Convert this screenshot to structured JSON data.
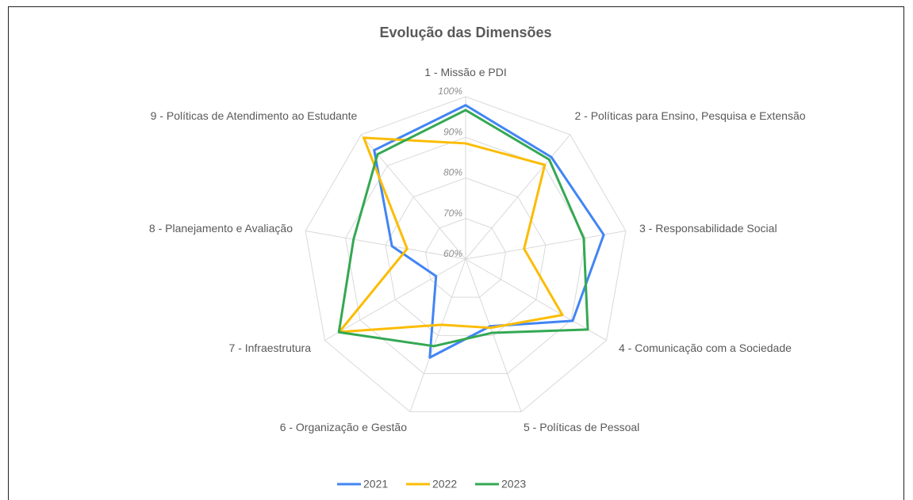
{
  "chart_data": {
    "type": "radar",
    "title": "Evolução das Dimensões",
    "categories": [
      "1 - Missão e PDI",
      "2 - Políticas para Ensino, Pesquisa e Extensão",
      "3 - Responsabilidade Social",
      "4 - Comunicação com a Sociedade",
      "5 - Políticas de Pessoal",
      "6 - Organização e Gestão",
      "7 - Infraestrutura",
      "8 - Planejamento e Avaliação",
      "9 - Políticas de Atendimento ao Estudante"
    ],
    "series": [
      {
        "name": "2021",
        "color": "#4285f4",
        "values": [
          97.9,
          92.8,
          94.5,
          90.4,
          77.6,
          85.8,
          68.4,
          78.4,
          95
        ]
      },
      {
        "name": "2022",
        "color": "#fbbc04",
        "values": [
          88.5,
          90.3,
          74.6,
          87.5,
          78,
          77.2,
          95.9,
          74.6,
          99
        ]
      },
      {
        "name": "2023",
        "color": "#34a853",
        "values": [
          96.7,
          92,
          89.5,
          94.7,
          79.3,
          82.8,
          96,
          88,
          93.7
        ]
      }
    ],
    "ylim": [
      60,
      100
    ],
    "yticks": [
      {
        "value": 60,
        "label": "60%"
      },
      {
        "value": 70,
        "label": "70%"
      },
      {
        "value": 80,
        "label": "80%"
      },
      {
        "value": 90,
        "label": "90%"
      },
      {
        "value": 100,
        "label": "100%"
      }
    ],
    "grid": true,
    "legend": "bottom"
  }
}
